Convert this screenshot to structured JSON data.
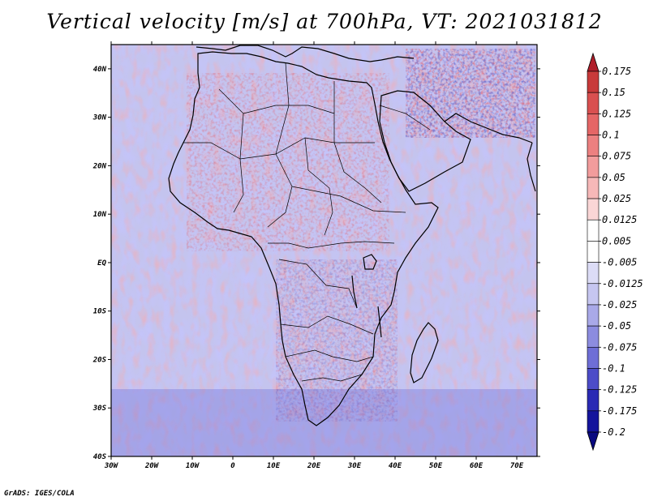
{
  "title": "Vertical velocity [m/s] at 700hPa, VT: 2021031812",
  "credit": "GrADS: IGES/COLA",
  "map": {
    "region": "Africa",
    "lon_range": [
      -30,
      75
    ],
    "lat_range": [
      -40,
      45
    ],
    "lat_labels": [
      "40N",
      "30N",
      "20N",
      "10N",
      "EQ",
      "10S",
      "20S",
      "30S",
      "40S"
    ],
    "lat_values": [
      40,
      30,
      20,
      10,
      0,
      -10,
      -20,
      -30,
      -40
    ],
    "lon_labels": [
      "30W",
      "20W",
      "10W",
      "0",
      "10E",
      "20E",
      "30E",
      "40E",
      "50E",
      "60E",
      "70E"
    ],
    "lon_values": [
      -30,
      -20,
      -10,
      0,
      10,
      20,
      30,
      40,
      50,
      60,
      70
    ]
  },
  "colorbar": {
    "labels": [
      "0.175",
      "0.15",
      "0.125",
      "0.1",
      "0.075",
      "0.05",
      "0.025",
      "0.0125",
      "0.005",
      "-0.005",
      "-0.0125",
      "-0.025",
      "-0.05",
      "-0.075",
      "-0.1",
      "-0.125",
      "-0.175",
      "-0.2"
    ],
    "colors": [
      "#b01e2a",
      "#c83a3a",
      "#d95050",
      "#e56666",
      "#ec8080",
      "#f29c9c",
      "#f6b8b8",
      "#fad6d6",
      "#ffffff",
      "#ffffff",
      "#dcdcf6",
      "#c6c6f0",
      "#a9a9e8",
      "#8c8cdf",
      "#6e6ed6",
      "#4c4cc8",
      "#2a2ab4",
      "#14149c",
      "#0a0a80"
    ]
  },
  "colors": {
    "positive": "#d84848",
    "negative": "#5a5ad8",
    "land_outline": "#000000"
  }
}
